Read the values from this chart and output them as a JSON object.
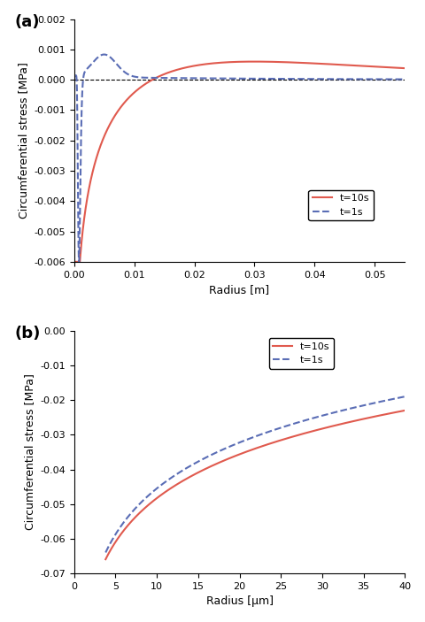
{
  "panel_a": {
    "title": "(a)",
    "xlabel": "Radius [m]",
    "ylabel": "Circumferential stress [MPa]",
    "xlim": [
      0,
      0.055
    ],
    "ylim": [
      -0.006,
      0.002
    ],
    "yticks": [
      -0.006,
      -0.005,
      -0.004,
      -0.003,
      -0.002,
      -0.001,
      0.0,
      0.001,
      0.002
    ],
    "xticks": [
      0,
      0.01,
      0.02,
      0.03,
      0.04,
      0.05
    ],
    "line_t10_color": "#e05a4e",
    "line_t1_color": "#5a6db5",
    "legend_labels": [
      "t=10s",
      "t=1s"
    ]
  },
  "panel_b": {
    "title": "(b)",
    "xlabel": "Radius [μm]",
    "ylabel": "Circumferential stress [MPa]",
    "xlim": [
      0,
      40
    ],
    "ylim": [
      -0.07,
      0.0
    ],
    "yticks": [
      -0.07,
      -0.06,
      -0.05,
      -0.04,
      -0.03,
      -0.02,
      -0.01,
      0.0
    ],
    "xticks": [
      0,
      5,
      10,
      15,
      20,
      25,
      30,
      35,
      40
    ],
    "line_t10_color": "#e05a4e",
    "line_t1_color": "#5a6db5",
    "legend_labels": [
      "t=10s",
      "t=1s"
    ]
  }
}
